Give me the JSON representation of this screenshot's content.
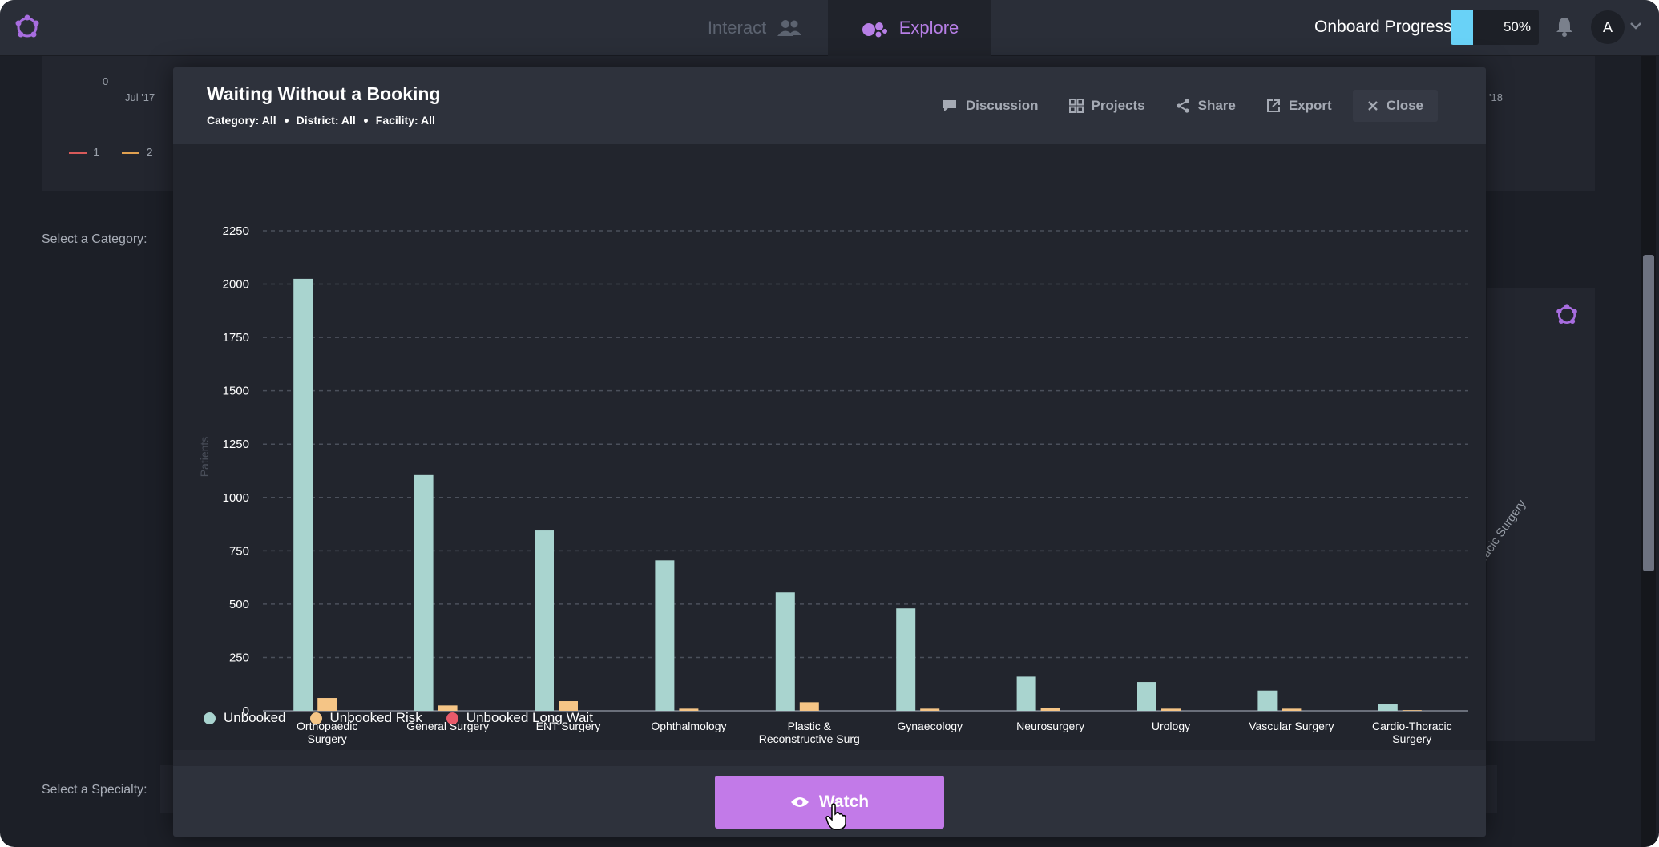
{
  "nav": {
    "tabs": [
      {
        "label": "Interact",
        "icon": "users-icon"
      },
      {
        "label": "Explore",
        "icon": "bubbles-icon"
      }
    ],
    "onboard_label": "Onboard Progress",
    "onboard_progress": 0.5,
    "onboard_text": "50%",
    "avatar_letter": "A"
  },
  "background": {
    "axis_zero": "0",
    "axis_start": "Jul '17",
    "axis_end": "'18",
    "legend": [
      "1",
      "2"
    ],
    "select_category": "Select a Category:",
    "select_specialty": "Select a Specialty:",
    "right_label": "oracic Surgery"
  },
  "modal": {
    "title": "Waiting Without a Booking",
    "filters": [
      "Category: All",
      "District: All",
      "Facility: All"
    ],
    "actions": {
      "discussion": "Discussion",
      "projects": "Projects",
      "share": "Share",
      "export": "Export",
      "close": "Close"
    },
    "watch_label": "Watch"
  },
  "colors": {
    "unbooked": "#a9d4cf",
    "unbooked_risk": "#f5c586",
    "unbooked_long_wait": "#e85a6a",
    "accent": "#c27ae8"
  },
  "chart_data": {
    "type": "bar",
    "title": "",
    "ylabel": "Patients",
    "ylim": [
      0,
      2250
    ],
    "yticks": [
      0,
      250,
      500,
      750,
      1000,
      1250,
      1500,
      1750,
      2000,
      2250
    ],
    "grid": true,
    "legend_position": "bottom-left",
    "categories": [
      [
        "Orthopaedic",
        "Surgery"
      ],
      [
        "General Surgery"
      ],
      [
        "ENT Surgery"
      ],
      [
        "Ophthalmology"
      ],
      [
        "Plastic &",
        "Reconstructive Surg"
      ],
      [
        "Gynaecology"
      ],
      [
        "Neurosurgery"
      ],
      [
        "Urology"
      ],
      [
        "Vascular Surgery"
      ],
      [
        "Cardio-Thoracic",
        "Surgery"
      ]
    ],
    "series": [
      {
        "name": "Unbooked",
        "values": [
          2025,
          1105,
          845,
          705,
          555,
          480,
          160,
          135,
          95,
          30
        ]
      },
      {
        "name": "Unbooked Risk",
        "values": [
          60,
          25,
          45,
          10,
          40,
          10,
          15,
          10,
          10,
          3
        ]
      },
      {
        "name": "Unbooked Long Wait",
        "values": [
          0,
          0,
          0,
          0,
          0,
          0,
          0,
          0,
          0,
          0
        ]
      }
    ]
  }
}
